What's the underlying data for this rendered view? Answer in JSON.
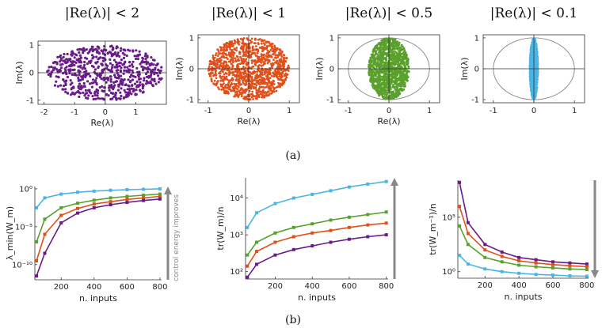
{
  "colors": {
    "purple": "#6a1b8a",
    "orange": "#e0501a",
    "green": "#5aa02c",
    "blue": "#4bb4e6",
    "arrow": "#888888"
  },
  "captions": {
    "a": "(a)",
    "b": "(b)"
  },
  "arrow_label": "control energy improves",
  "chart_data": [
    {
      "type": "scatter",
      "title": "|Re(λ)| < 2",
      "xlabel": "Re(λ)",
      "ylabel": "Im(λ)",
      "xlim": [
        -2.2,
        2.0
      ],
      "ylim": [
        -1.15,
        1.15
      ],
      "xticks": [
        -2,
        -1,
        0,
        1
      ],
      "yticks": [
        -1,
        0,
        1
      ],
      "ellipse": {
        "rx": 1.9,
        "ry": 1.0
      },
      "color": "purple",
      "unit_circle": false
    },
    {
      "type": "scatter",
      "title": "|Re(λ)| < 1",
      "xlabel": "Re(λ)",
      "ylabel": "Im(λ)",
      "xlim": [
        -1.25,
        1.25
      ],
      "ylim": [
        -1.1,
        1.1
      ],
      "xticks": [
        -1,
        0,
        1
      ],
      "yticks": [
        -1,
        0,
        1
      ],
      "ellipse": {
        "rx": 1.0,
        "ry": 1.0
      },
      "color": "orange",
      "unit_circle": false
    },
    {
      "type": "scatter",
      "title": "|Re(λ)| < 0.5",
      "xlabel": "Re(λ)",
      "ylabel": "Im(λ)",
      "xlim": [
        -1.25,
        1.25
      ],
      "ylim": [
        -1.1,
        1.1
      ],
      "xticks": [
        -1,
        0,
        1
      ],
      "yticks": [
        -1,
        0,
        1
      ],
      "ellipse": {
        "rx": 0.5,
        "ry": 1.0
      },
      "color": "green",
      "unit_circle": true
    },
    {
      "type": "scatter",
      "title": "|Re(λ)| < 0.1",
      "xlabel": "",
      "ylabel": "Im(λ)",
      "xlim": [
        -1.25,
        1.25
      ],
      "ylim": [
        -1.1,
        1.1
      ],
      "xticks": [
        -1,
        0,
        1
      ],
      "yticks": [
        -1,
        0,
        1
      ],
      "ellipse": {
        "rx": 0.1,
        "ry": 1.0
      },
      "color": "blue",
      "unit_circle": true
    },
    {
      "type": "line",
      "xlabel": "n. inputs",
      "ylabel": "λ_min(W_m)",
      "yscale": "log",
      "xlim": [
        40,
        810
      ],
      "ylim_exp": [
        -12,
        0.3
      ],
      "xticks": [
        200,
        400,
        600,
        800
      ],
      "yticks": [
        {
          "exp": 0,
          "label": "10⁰"
        },
        {
          "exp": -5,
          "label": "10⁻⁵"
        },
        {
          "exp": -10,
          "label": "10⁻¹⁰"
        }
      ],
      "x": [
        50,
        100,
        200,
        300,
        400,
        500,
        600,
        700,
        800
      ],
      "series": [
        {
          "color": "blue",
          "log10": [
            -2.5,
            -1.2,
            -0.7,
            -0.45,
            -0.3,
            -0.2,
            -0.12,
            -0.06,
            0.0
          ]
        },
        {
          "color": "green",
          "log10": [
            -7.0,
            -4.0,
            -2.5,
            -1.9,
            -1.5,
            -1.2,
            -1.0,
            -0.85,
            -0.7
          ]
        },
        {
          "color": "orange",
          "log10": [
            -9.5,
            -6.0,
            -3.5,
            -2.6,
            -2.0,
            -1.7,
            -1.4,
            -1.2,
            -1.0
          ]
        },
        {
          "color": "purple",
          "log10": [
            -11.5,
            -8.5,
            -4.5,
            -3.2,
            -2.5,
            -2.1,
            -1.8,
            -1.55,
            -1.35
          ]
        }
      ],
      "arrow": "up"
    },
    {
      "type": "line",
      "xlabel": "n. inputs",
      "ylabel": "tr(W_m)/n",
      "yscale": "log",
      "xlim": [
        40,
        810
      ],
      "ylim_exp": [
        1.8,
        4.55
      ],
      "xticks": [
        200,
        400,
        600,
        800
      ],
      "yticks": [
        {
          "exp": 4,
          "label": "10⁴"
        },
        {
          "exp": 3,
          "label": "10³"
        },
        {
          "exp": 2,
          "label": "10²"
        }
      ],
      "x": [
        50,
        100,
        200,
        300,
        400,
        500,
        600,
        700,
        800
      ],
      "series": [
        {
          "color": "blue",
          "log10": [
            3.2,
            3.6,
            3.85,
            4.0,
            4.1,
            4.2,
            4.3,
            4.38,
            4.45
          ]
        },
        {
          "color": "green",
          "log10": [
            2.45,
            2.8,
            3.05,
            3.2,
            3.3,
            3.4,
            3.48,
            3.55,
            3.62
          ]
        },
        {
          "color": "orange",
          "log10": [
            2.15,
            2.55,
            2.8,
            2.95,
            3.05,
            3.12,
            3.2,
            3.27,
            3.32
          ]
        },
        {
          "color": "purple",
          "log10": [
            1.85,
            2.2,
            2.45,
            2.6,
            2.7,
            2.8,
            2.88,
            2.95,
            3.0
          ]
        }
      ],
      "arrow": "up"
    },
    {
      "type": "line",
      "xlabel": "n. inputs",
      "ylabel": "tr(W_m⁻¹)/n",
      "yscale": "log",
      "xlim": [
        40,
        810
      ],
      "ylim_exp": [
        -0.6,
        8.4
      ],
      "xticks": [
        200,
        400,
        600,
        800
      ],
      "yticks": [
        {
          "exp": 5,
          "label": "10⁵"
        },
        {
          "exp": 0,
          "label": "10⁰"
        }
      ],
      "x": [
        50,
        100,
        200,
        300,
        400,
        500,
        600,
        700,
        800
      ],
      "series": [
        {
          "color": "purple",
          "log10": [
            8.2,
            4.5,
            2.5,
            1.8,
            1.3,
            1.1,
            0.9,
            0.8,
            0.7
          ]
        },
        {
          "color": "orange",
          "log10": [
            6.0,
            3.5,
            2.0,
            1.4,
            1.0,
            0.8,
            0.65,
            0.55,
            0.45
          ]
        },
        {
          "color": "green",
          "log10": [
            4.2,
            2.5,
            1.3,
            0.9,
            0.6,
            0.45,
            0.35,
            0.25,
            0.2
          ]
        },
        {
          "color": "blue",
          "log10": [
            1.5,
            0.7,
            0.25,
            0.0,
            -0.15,
            -0.25,
            -0.32,
            -0.38,
            -0.42
          ]
        }
      ],
      "arrow": "down"
    }
  ]
}
